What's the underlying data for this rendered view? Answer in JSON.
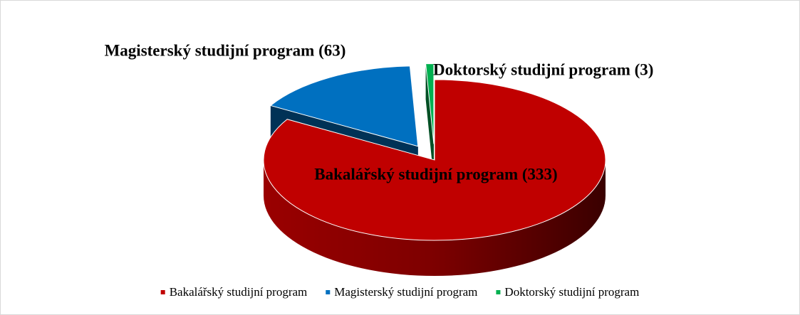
{
  "chart_data": {
    "type": "pie3d",
    "categories": [
      "Bakalářský studijní program",
      "Magisterský studijní program",
      "Doktorský studijní program"
    ],
    "values": [
      333,
      63,
      3
    ],
    "value_labels": [
      "Bakalářský studijní program (333)",
      "Magisterský studijní program (63)",
      "Doktorský studijní program (3)"
    ],
    "colors": [
      "#c00000",
      "#0070c0",
      "#00b050"
    ],
    "legend": "bottom"
  }
}
